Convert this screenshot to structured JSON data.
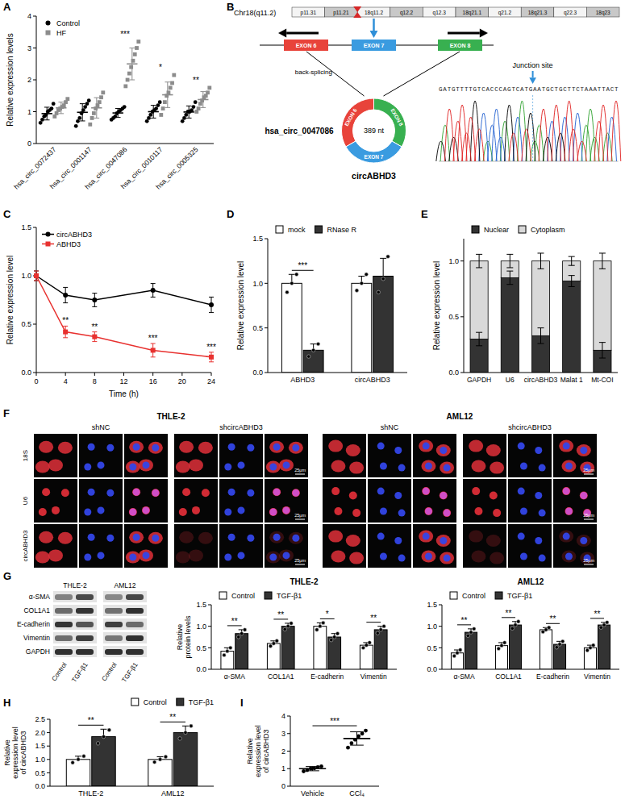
{
  "chart_data": [
    {
      "panel_label": "A",
      "type": "scatter",
      "y_label": "Relative expression levels",
      "categories": [
        "hsa_circ_0072437",
        "hsa_circ_0001147",
        "hsa_circ_0047086",
        "hsa_circ_0010117",
        "hsa_circ_0005325"
      ],
      "ylim": [
        0,
        4
      ],
      "yticks": [
        0,
        1,
        2,
        3,
        4
      ],
      "legend": "top-left",
      "series": [
        {
          "name": "Control",
          "color": "#000000",
          "marker": "circle",
          "values": [
            0.94,
            0.98,
            0.96,
            1.0,
            0.99
          ],
          "errors": [
            0.2,
            0.27,
            0.14,
            0.2,
            0.19
          ],
          "points": [
            [
              0.65,
              0.75,
              0.85,
              0.9,
              1.0,
              1.05,
              1.1,
              1.25
            ],
            [
              0.55,
              0.7,
              0.8,
              0.95,
              1.05,
              1.15,
              1.25,
              1.35
            ],
            [
              0.75,
              0.8,
              0.85,
              0.95,
              1.0,
              1.05,
              1.1,
              1.15
            ],
            [
              0.7,
              0.8,
              0.9,
              1.0,
              1.05,
              1.1,
              1.2,
              1.3
            ],
            [
              0.7,
              0.8,
              0.9,
              1.0,
              1.0,
              1.05,
              1.15,
              1.3
            ]
          ]
        },
        {
          "name": "HF",
          "color": "#8c8c8c",
          "marker": "square",
          "values": [
            1.12,
            1.12,
            2.5,
            1.53,
            1.38
          ],
          "errors": [
            0.18,
            0.32,
            0.5,
            0.4,
            0.25
          ],
          "points": [
            [
              0.85,
              0.95,
              1.05,
              1.1,
              1.15,
              1.2,
              1.3,
              1.4
            ],
            [
              0.6,
              0.8,
              0.95,
              1.1,
              1.2,
              1.3,
              1.45,
              1.6
            ],
            [
              1.8,
              2.0,
              2.2,
              2.4,
              2.6,
              2.8,
              3.0,
              3.2
            ],
            [
              0.9,
              1.1,
              1.3,
              1.5,
              1.6,
              1.75,
              1.9,
              2.15
            ],
            [
              1.0,
              1.1,
              1.25,
              1.35,
              1.45,
              1.5,
              1.6,
              1.75
            ]
          ]
        }
      ],
      "significance": [
        null,
        null,
        "***",
        "*",
        "**"
      ]
    },
    {
      "panel_label": "C",
      "type": "line",
      "x_label": "Time (h)",
      "y_label": "Relative expression level",
      "x": [
        0,
        4,
        8,
        16,
        24
      ],
      "xlim": [
        0,
        24
      ],
      "xticks": [
        0,
        4,
        8,
        12,
        16,
        20,
        24
      ],
      "ylim": [
        0,
        1.5
      ],
      "yticks": [
        {
          "value": 0,
          "label": "0.0"
        },
        0.5,
        {
          "value": 1,
          "label": "1.0"
        },
        1.5
      ],
      "legend": "top-left",
      "series": [
        {
          "name": "circABHD3",
          "color": "#000000",
          "marker": "circle",
          "values": [
            1.0,
            0.8,
            0.75,
            0.85,
            0.7
          ],
          "errors": [
            0.05,
            0.08,
            0.07,
            0.07,
            0.08
          ]
        },
        {
          "name": "ABHD3",
          "color": "#e8312f",
          "marker": "square",
          "values": [
            1.0,
            0.42,
            0.37,
            0.23,
            0.16
          ],
          "errors": [
            0.05,
            0.06,
            0.05,
            0.07,
            0.05
          ]
        }
      ],
      "significance": [
        null,
        "**",
        "**",
        "***",
        "***"
      ]
    },
    {
      "panel_label": "D",
      "type": "bar",
      "y_label": "Relative expression level",
      "categories": [
        "ABHD3",
        "circABHD3"
      ],
      "ylim": [
        0,
        1.5
      ],
      "yticks": [
        {
          "value": 0,
          "label": "0.0"
        },
        0.5,
        {
          "value": 1,
          "label": "1.0"
        },
        1.5
      ],
      "legend": "top",
      "series": [
        {
          "name": "mock",
          "color": "#ffffff",
          "values": [
            1.0,
            1.0
          ],
          "errors": [
            0.1,
            0.08
          ],
          "points": [
            [
              0.9,
              1.0,
              1.1
            ],
            [
              0.92,
              1.0,
              1.1
            ]
          ]
        },
        {
          "name": "RNase R",
          "color": "#333333",
          "values": [
            0.25,
            1.08
          ],
          "errors": [
            0.07,
            0.2
          ],
          "points": [
            [
              0.18,
              0.25,
              0.32
            ],
            [
              0.9,
              1.05,
              1.3
            ]
          ]
        }
      ],
      "significance": [
        "***",
        null
      ]
    },
    {
      "panel_label": "E",
      "type": "bar",
      "stacked": true,
      "y_label": "Relative expression level",
      "categories": [
        "GAPDH",
        "U6",
        "circABHD3",
        "Malat 1",
        "Mt-COI"
      ],
      "ylim": [
        0,
        1.2
      ],
      "yticks": [
        {
          "value": 0,
          "label": "0.0"
        },
        0.5,
        {
          "value": 1,
          "label": "1.0"
        }
      ],
      "legend": "top",
      "series": [
        {
          "name": "Nuclear",
          "color": "#333333",
          "values": [
            0.3,
            0.85,
            0.33,
            0.82,
            0.2
          ],
          "errors": [
            0.06,
            0.06,
            0.07,
            0.05,
            0.07
          ]
        },
        {
          "name": "Cytoplasm",
          "color": "#d9d9d9",
          "values": [
            0.7,
            0.15,
            0.67,
            0.18,
            0.8
          ],
          "errors": [
            0.06,
            0.06,
            0.07,
            0.04,
            0.07
          ]
        }
      ]
    },
    {
      "type": "bar",
      "title": "THLE-2",
      "y_label": "Relative protein levels",
      "categories": [
        "α-SMA",
        "COL1A1",
        "E-cadherin",
        "Vimentin"
      ],
      "ylim": [
        0,
        1.5
      ],
      "yticks": [
        {
          "value": 0,
          "label": "0.0"
        },
        0.5,
        {
          "value": 1,
          "label": "1.0"
        },
        1.5
      ],
      "legend": "top",
      "series": [
        {
          "name": "Control",
          "color": "#ffffff",
          "values": [
            0.42,
            0.6,
            1.0,
            0.56
          ],
          "errors": [
            0.08,
            0.06,
            0.08,
            0.06
          ],
          "points": [
            [
              0.33,
              0.42,
              0.5
            ],
            [
              0.54,
              0.6,
              0.66
            ],
            [
              0.92,
              1.0,
              1.08
            ],
            [
              0.5,
              0.56,
              0.62
            ]
          ]
        },
        {
          "name": "TGF-β1",
          "color": "#333333",
          "values": [
            0.83,
            1.0,
            0.75,
            0.92
          ],
          "errors": [
            0.09,
            0.07,
            0.08,
            0.08
          ],
          "points": [
            [
              0.75,
              0.83,
              0.92
            ],
            [
              0.93,
              1.0,
              1.07
            ],
            [
              0.68,
              0.75,
              0.83
            ],
            [
              0.84,
              0.92,
              1.0
            ]
          ]
        }
      ],
      "significance": [
        "**",
        "**",
        "*",
        "**"
      ]
    },
    {
      "type": "bar",
      "title": "AML12",
      "categories": [
        "α-SMA",
        "COL1A1",
        "E-cadherin",
        "Vimentin"
      ],
      "ylim": [
        0,
        1.5
      ],
      "yticks": [
        {
          "value": 0,
          "label": "0.0"
        },
        0.5,
        {
          "value": 1,
          "label": "1.0"
        },
        1.5
      ],
      "legend": "top",
      "series": [
        {
          "name": "Control",
          "color": "#ffffff",
          "values": [
            0.38,
            0.55,
            0.92,
            0.5
          ],
          "errors": [
            0.07,
            0.07,
            0.05,
            0.06
          ],
          "points": [
            [
              0.31,
              0.38,
              0.45
            ],
            [
              0.48,
              0.55,
              0.62
            ],
            [
              0.87,
              0.92,
              0.97
            ],
            [
              0.44,
              0.5,
              0.56
            ]
          ]
        },
        {
          "name": "TGF-β1",
          "color": "#333333",
          "values": [
            0.86,
            1.03,
            0.58,
            1.03
          ],
          "errors": [
            0.08,
            0.08,
            0.07,
            0.06
          ],
          "points": [
            [
              0.78,
              0.86,
              0.94
            ],
            [
              0.95,
              1.03,
              1.11
            ],
            [
              0.51,
              0.58,
              0.65
            ],
            [
              0.97,
              1.03,
              1.09
            ]
          ]
        }
      ],
      "significance": [
        "**",
        "**",
        "**",
        "**"
      ]
    },
    {
      "panel_label": "H",
      "type": "bar",
      "y_label": "Relative expression level of circABHD3",
      "categories": [
        "THLE-2",
        "AML12"
      ],
      "ylim": [
        0,
        2.5
      ],
      "yticks": [
        {
          "value": 0,
          "label": "0.0"
        },
        0.5,
        {
          "value": 1,
          "label": "1.0"
        },
        1.5,
        {
          "value": 2,
          "label": "2.0"
        },
        2.5
      ],
      "legend": "top-right",
      "series": [
        {
          "name": "Control",
          "color": "#ffffff",
          "values": [
            1.0,
            1.0
          ],
          "errors": [
            0.12,
            0.1
          ],
          "points": [
            [
              0.88,
              1.0,
              1.12
            ],
            [
              0.9,
              1.0,
              1.1
            ]
          ]
        },
        {
          "name": "TGF-β1",
          "color": "#333333",
          "values": [
            1.85,
            2.0
          ],
          "errors": [
            0.28,
            0.25
          ],
          "points": [
            [
              1.6,
              1.85,
              2.1
            ],
            [
              1.78,
              2.0,
              2.25
            ]
          ]
        }
      ],
      "significance": [
        "**",
        "**"
      ]
    },
    {
      "panel_label": "I",
      "type": "scatter",
      "y_label": "Relative expression level of circABHD3",
      "categories": [
        "Vehicle",
        "CCl₄"
      ],
      "ylim": [
        0,
        4
      ],
      "yticks": [
        0,
        1,
        2,
        3,
        4
      ],
      "color": "#000000",
      "marker": "circle",
      "values": [
        1.0,
        2.72
      ],
      "errors": [
        0.12,
        0.38
      ],
      "points": [
        [
          0.85,
          0.92,
          1.0,
          1.02,
          1.08,
          1.13
        ],
        [
          2.2,
          2.45,
          2.65,
          2.85,
          3.0,
          3.17
        ]
      ],
      "significance": "***"
    }
  ],
  "diagram": {
    "B": {
      "panel_label": "B",
      "chromosome": "Chr18(q11.2)",
      "bands": [
        "p11.31",
        "p11.21",
        "18q11.2",
        "q12.2",
        "q12.3",
        "18q21.1",
        "q21.2",
        "18q21.3",
        "q22.3",
        "18q23"
      ],
      "exons": [
        "EXON 6",
        "EXON 7",
        "EXON 8"
      ],
      "process": "back-splicing",
      "circ_id": "hsa_circ_0047086",
      "circ_name": "circABHD3",
      "length": "389 nt",
      "junction": "Junction site",
      "sequence": "GATGTTTTGTCACCCAGTCATGAATGCTGCTTCTAAATTACT",
      "junction_index": 22
    },
    "F": {
      "panel_label": "F",
      "cell_lines": [
        "THLE-2",
        "AML12"
      ],
      "groups": [
        "shNC",
        "shcircABHD3"
      ],
      "rows": [
        "18S",
        "U6",
        "circABHD3"
      ],
      "scale_bar": "25μm"
    },
    "G_blot": {
      "panel_label": "G",
      "cell_lines": [
        "THLE-2",
        "AML12"
      ],
      "conditions": [
        "Control",
        "TGF-β1"
      ],
      "rows": [
        "α-SMA",
        "COL1A1",
        "E-cadherin",
        "Vimentin",
        "GAPDH"
      ]
    }
  }
}
